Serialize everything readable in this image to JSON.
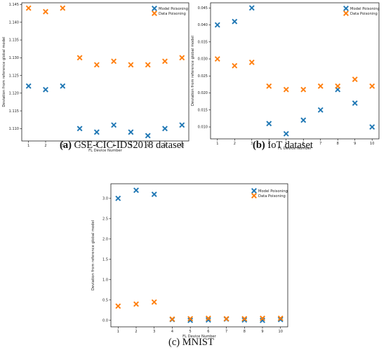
{
  "colors": {
    "model": "#1f77b4",
    "data": "#ff7f0e",
    "axis": "#000000"
  },
  "chart_data": [
    {
      "type": "scatter",
      "caption_tag": "(a)",
      "caption_text": "CSE-CIC-IDS2018 dataset",
      "xlabel": "FL Device Number",
      "ylabel": "Deviation from reference global model",
      "x": [
        1,
        2,
        3,
        4,
        5,
        6,
        7,
        8,
        9,
        10
      ],
      "xticks": [
        "1",
        "2",
        "3",
        "4",
        "5",
        "6",
        "7",
        "8",
        "9",
        "10"
      ],
      "yticks": [
        "1.110",
        "1.115",
        "1.120",
        "1.125",
        "1.130",
        "1.135",
        "1.140",
        "1.145"
      ],
      "ylim": [
        1.1065,
        1.1455
      ],
      "legend_position": "top-right",
      "series": [
        {
          "name": "Model Poisoning",
          "values": [
            1.122,
            1.121,
            1.122,
            1.11,
            1.109,
            1.111,
            1.109,
            1.108,
            1.11,
            1.111
          ]
        },
        {
          "name": "Data Poisoning",
          "values": [
            1.144,
            1.143,
            1.144,
            1.13,
            1.128,
            1.129,
            1.128,
            1.128,
            1.129,
            1.13
          ]
        }
      ]
    },
    {
      "type": "scatter",
      "caption_tag": "(b)",
      "caption_text": "IoT dataset",
      "xlabel": "FL Device Number",
      "ylabel": "Deviation from reference global model",
      "x": [
        1,
        2,
        3,
        4,
        5,
        6,
        7,
        8,
        9,
        10
      ],
      "xticks": [
        "1",
        "2",
        "3",
        "4",
        "5",
        "6",
        "7",
        "8",
        "9",
        "10"
      ],
      "yticks": [
        "0.010",
        "0.015",
        "0.020",
        "0.025",
        "0.030",
        "0.035",
        "0.040",
        "0.045"
      ],
      "ylim": [
        0.0065,
        0.0465
      ],
      "legend_position": "top-right",
      "series": [
        {
          "name": "Model Poisoning",
          "values": [
            0.04,
            0.041,
            0.045,
            0.011,
            0.008,
            0.012,
            0.015,
            0.021,
            0.017,
            0.01
          ]
        },
        {
          "name": "Data Poisoning",
          "values": [
            0.03,
            0.028,
            0.029,
            0.022,
            0.021,
            0.021,
            0.022,
            0.022,
            0.024,
            0.022
          ]
        }
      ]
    },
    {
      "type": "scatter",
      "caption_tag": "(c)",
      "caption_text": "MNIST",
      "xlabel": "FL Device Number",
      "ylabel": "Deviation from reference global model",
      "x": [
        1,
        2,
        3,
        4,
        5,
        6,
        7,
        8,
        9,
        10
      ],
      "xticks": [
        "1",
        "2",
        "3",
        "4",
        "5",
        "6",
        "7",
        "8",
        "9",
        "10"
      ],
      "yticks": [
        "0.0",
        "0.5",
        "1.0",
        "1.5",
        "2.0",
        "2.5",
        "3.0"
      ],
      "ylim": [
        -0.16,
        3.36
      ],
      "legend_position": "top-right",
      "series": [
        {
          "name": "Model Poisoning",
          "values": [
            3.0,
            3.2,
            3.1,
            0.02,
            0.0,
            0.01,
            0.03,
            0.01,
            0.0,
            0.02
          ]
        },
        {
          "name": "Data Poisoning",
          "values": [
            0.35,
            0.4,
            0.45,
            0.03,
            0.04,
            0.05,
            0.04,
            0.04,
            0.05,
            0.05
          ]
        }
      ]
    }
  ]
}
